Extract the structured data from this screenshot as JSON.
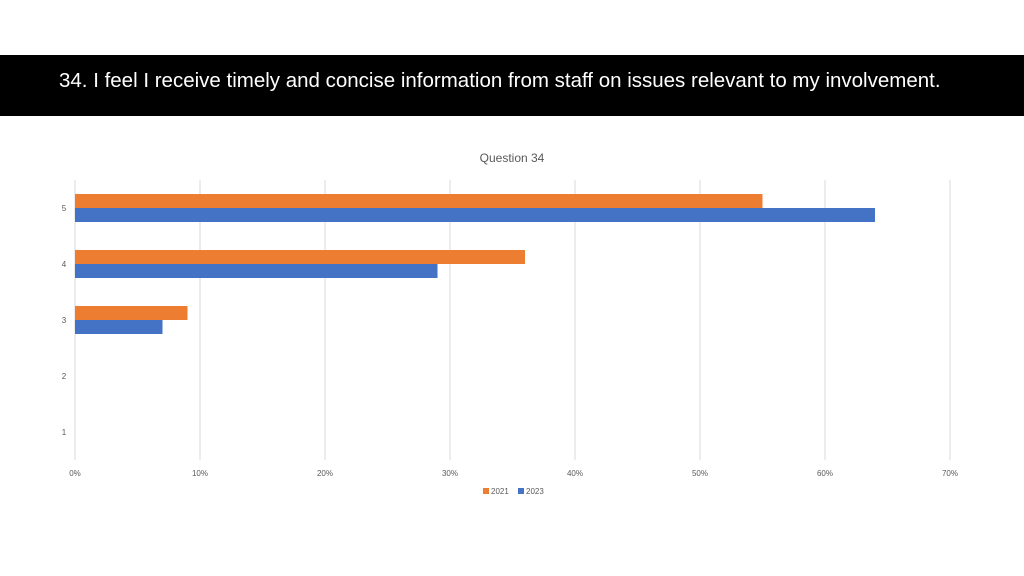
{
  "slide": {
    "title": "34. I feel I receive timely and concise information from staff on issues relevant to my involvement."
  },
  "colors": {
    "title_band": "#000000",
    "series_2021": "#ED7D31",
    "series_2023": "#4472C4",
    "gridline": "#D9D9D9",
    "axis_text": "#595959"
  },
  "chart_data": {
    "type": "bar",
    "orientation": "horizontal",
    "title": "Question 34",
    "categories": [
      "5",
      "4",
      "3",
      "2",
      "1"
    ],
    "series": [
      {
        "name": "2021",
        "values": [
          55,
          36,
          9,
          0,
          0
        ]
      },
      {
        "name": "2023",
        "values": [
          64,
          29,
          7,
          0,
          0
        ]
      }
    ],
    "xlim": [
      0,
      70
    ],
    "xticks": [
      0,
      10,
      20,
      30,
      40,
      50,
      60,
      70
    ],
    "xtick_labels": [
      "0%",
      "10%",
      "20%",
      "30%",
      "40%",
      "50%",
      "60%",
      "70%"
    ],
    "xlabel": "",
    "ylabel": "",
    "grid": true,
    "legend_position": "bottom"
  }
}
